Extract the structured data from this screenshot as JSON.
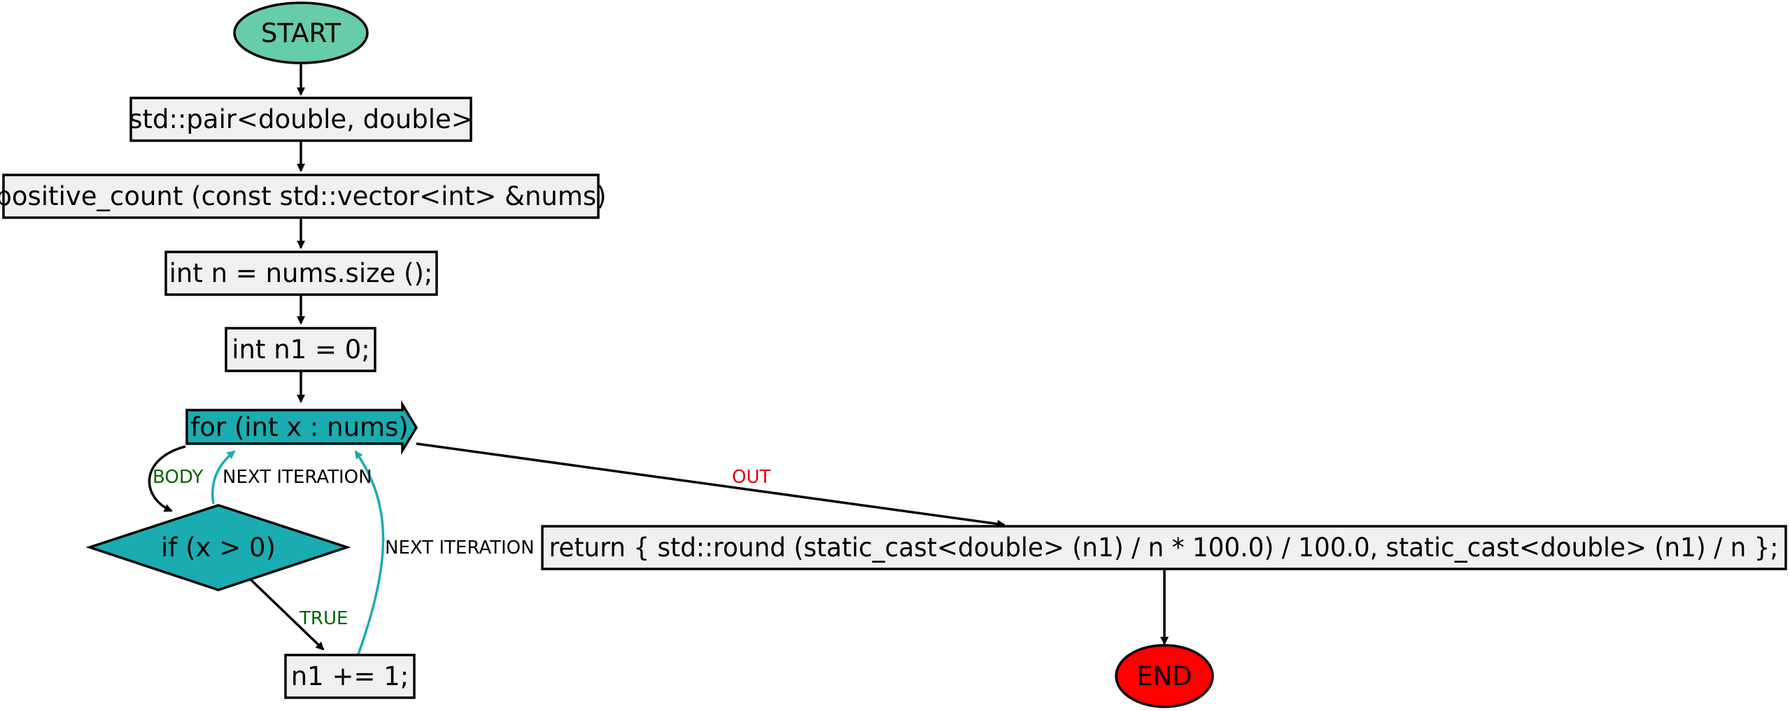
{
  "flowchart": {
    "start": {
      "label": "START",
      "color": "#66cda8"
    },
    "end": {
      "label": "END",
      "color": "#ff0000"
    },
    "nodes": {
      "return_type": "std::pair<double, double>",
      "signature": "positive_count (const std::vector<int> &nums)",
      "decl_n": "int n = nums.size ();",
      "decl_n1": "int n1 = 0;",
      "loop": "for (int x : nums)",
      "condition": "if (x > 0)",
      "increment": "n1 += 1;",
      "return_stmt": "return { std::round (static_cast<double> (n1) / n * 100.0) / 100.0, static_cast<double> (n1) / n };"
    },
    "edges": {
      "body": "BODY",
      "next_iteration_1": "NEXT ITERATION",
      "next_iteration_2": "NEXT ITERATION",
      "true": "TRUE",
      "out": "OUT"
    },
    "colors": {
      "box_fill": "#f0f0f0",
      "control_fill": "#1aacb0",
      "loop_edge": "#1aacb0",
      "green_label": "#006400",
      "red_label": "#e00000"
    }
  }
}
